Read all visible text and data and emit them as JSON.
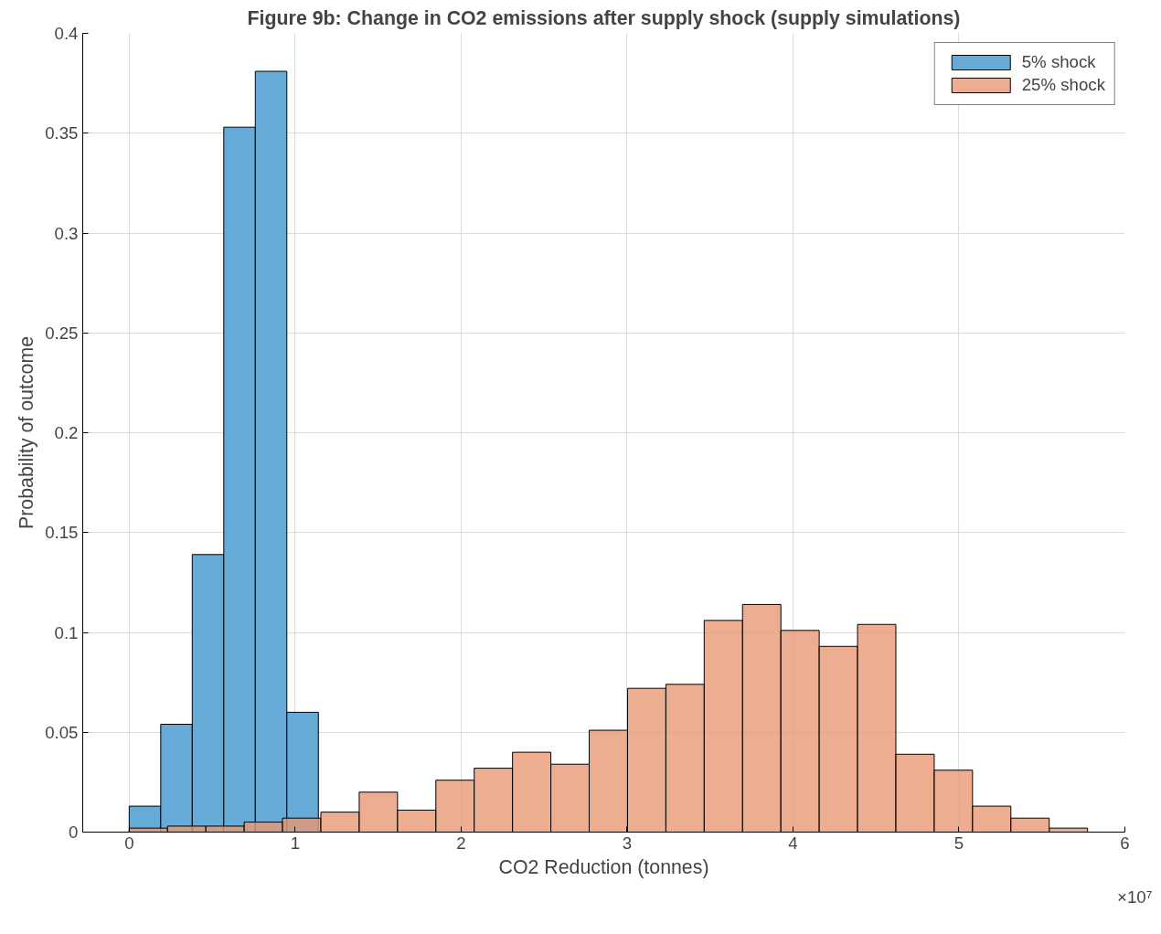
{
  "chart_data": {
    "type": "bar",
    "title": "Figure 9b: Change in CO2 emissions after supply shock (supply simulations)",
    "xlabel": "CO2 Reduction (tonnes)",
    "ylabel": "Probability of outcome",
    "annotations": [
      "×10⁷"
    ],
    "series": [
      {
        "name": "5% shock",
        "color": "#66aad7",
        "x": [
          0.095,
          0.285,
          0.475,
          0.665,
          0.855,
          1.045
        ],
        "values": [
          0.013,
          0.054,
          0.139,
          0.353,
          0.381,
          0.06
        ]
      },
      {
        "name": "25% shock",
        "color": "#e89875",
        "x": [
          0.1155,
          0.3465,
          0.5775,
          0.8085,
          1.0395,
          1.2705,
          1.5015,
          1.7325,
          1.9635,
          2.1945,
          2.4255,
          2.6565,
          2.8875,
          3.1185,
          3.3495,
          3.5805,
          3.8115,
          4.0425,
          4.2735,
          4.5045,
          4.7355,
          4.9665,
          5.1975,
          5.4285,
          5.6595
        ],
        "values": [
          0.002,
          0.003,
          0.003,
          0.005,
          0.007,
          0.01,
          0.02,
          0.011,
          0.026,
          0.032,
          0.04,
          0.034,
          0.051,
          0.072,
          0.074,
          0.106,
          0.114,
          0.101,
          0.093,
          0.104,
          0.039,
          0.031,
          0.013,
          0.007,
          0.002
        ]
      }
    ],
    "xlim": [
      -0.28,
      6
    ],
    "xticks": [
      0,
      1,
      2,
      3,
      4,
      5,
      6
    ],
    "ylim": [
      0,
      0.4
    ],
    "yticks": [
      0,
      0.05,
      0.1,
      0.15,
      0.2,
      0.25,
      0.3,
      0.35,
      0.4
    ],
    "grid": true,
    "legend": "top right"
  }
}
